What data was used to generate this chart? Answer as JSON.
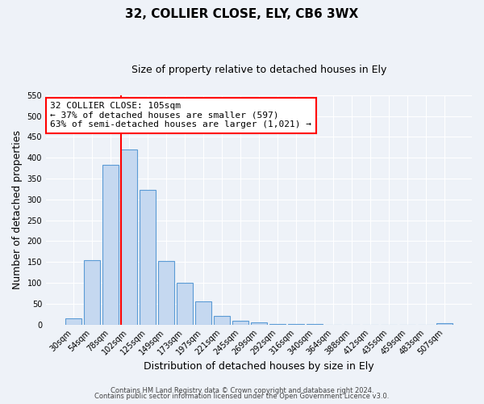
{
  "title": "32, COLLIER CLOSE, ELY, CB6 3WX",
  "subtitle": "Size of property relative to detached houses in Ely",
  "xlabel": "Distribution of detached houses by size in Ely",
  "ylabel": "Number of detached properties",
  "bar_labels": [
    "30sqm",
    "54sqm",
    "78sqm",
    "102sqm",
    "125sqm",
    "149sqm",
    "173sqm",
    "197sqm",
    "221sqm",
    "245sqm",
    "269sqm",
    "292sqm",
    "316sqm",
    "340sqm",
    "364sqm",
    "388sqm",
    "412sqm",
    "435sqm",
    "459sqm",
    "483sqm",
    "507sqm"
  ],
  "bar_heights": [
    15,
    155,
    382,
    420,
    323,
    153,
    100,
    55,
    20,
    10,
    5,
    2,
    1,
    1,
    0,
    0,
    0,
    0,
    0,
    0,
    3
  ],
  "bar_color": "#c5d8f0",
  "bar_edge_color": "#5b9bd5",
  "vline_color": "red",
  "vline_bar_index": 3,
  "ylim": [
    0,
    550
  ],
  "yticks": [
    0,
    50,
    100,
    150,
    200,
    250,
    300,
    350,
    400,
    450,
    500,
    550
  ],
  "annotation_text": "32 COLLIER CLOSE: 105sqm\n← 37% of detached houses are smaller (597)\n63% of semi-detached houses are larger (1,021) →",
  "annotation_box_color": "white",
  "annotation_box_edge_color": "red",
  "footer_line1": "Contains HM Land Registry data © Crown copyright and database right 2024.",
  "footer_line2": "Contains public sector information licensed under the Open Government Licence v3.0.",
  "background_color": "#eef2f8",
  "grid_color": "#ffffff",
  "title_fontsize": 11,
  "subtitle_fontsize": 9,
  "tick_fontsize": 7,
  "label_fontsize": 9,
  "annotation_fontsize": 8,
  "footer_fontsize": 6
}
